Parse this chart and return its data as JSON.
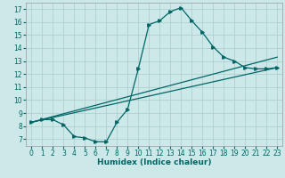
{
  "title": "",
  "xlabel": "Humidex (Indice chaleur)",
  "xlim": [
    -0.5,
    23.5
  ],
  "ylim": [
    6.5,
    17.5
  ],
  "xticks": [
    0,
    1,
    2,
    3,
    4,
    5,
    6,
    7,
    8,
    9,
    10,
    11,
    12,
    13,
    14,
    15,
    16,
    17,
    18,
    19,
    20,
    21,
    22,
    23
  ],
  "yticks": [
    7,
    8,
    9,
    10,
    11,
    12,
    13,
    14,
    15,
    16,
    17
  ],
  "bg_color": "#cce8e8",
  "line_color": "#006666",
  "grid_color": "#aacccc",
  "series1_x": [
    0,
    1,
    2,
    3,
    4,
    5,
    6,
    7,
    8,
    9,
    10,
    11,
    12,
    13,
    14,
    15,
    16,
    17,
    18,
    19,
    20,
    21,
    22,
    23
  ],
  "series1_y": [
    8.3,
    8.5,
    8.5,
    8.1,
    7.2,
    7.1,
    6.8,
    6.8,
    8.3,
    9.3,
    12.4,
    15.8,
    16.1,
    16.8,
    17.1,
    16.1,
    15.2,
    14.1,
    13.3,
    13.0,
    12.5,
    12.4,
    12.4,
    12.5
  ],
  "series2_x": [
    0,
    23
  ],
  "series2_y": [
    8.3,
    13.3
  ],
  "series3_x": [
    0,
    23
  ],
  "series3_y": [
    8.3,
    12.5
  ]
}
